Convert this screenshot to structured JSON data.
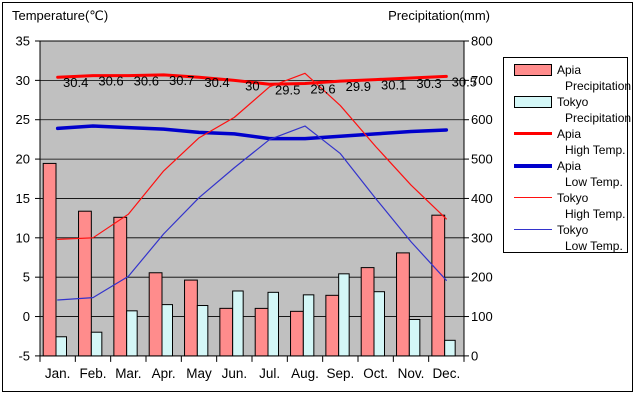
{
  "titles": {
    "left_axis": "Temperature(℃)",
    "right_axis": "Precipitation(mm)"
  },
  "chart_data": {
    "type": "combo-bar-line",
    "plot_bg": "#c0c0c0",
    "grid": true,
    "categories": [
      "Jan.",
      "Feb.",
      "Mar.",
      "Apr.",
      "May",
      "Jun.",
      "Jul.",
      "Aug.",
      "Sep.",
      "Oct.",
      "Nov.",
      "Dec."
    ],
    "temp_axis": {
      "title": "Temperature(℃)",
      "min": -5,
      "max": 35,
      "step": 5,
      "ticks": [
        "35",
        "30",
        "25",
        "20",
        "15",
        "10",
        "5",
        "0",
        "-5"
      ]
    },
    "precip_axis": {
      "title": "Precipitation(mm)",
      "min": 0,
      "max": 800,
      "step": 100,
      "ticks": [
        "800",
        "700",
        "600",
        "500",
        "400",
        "300",
        "200",
        "100",
        "0"
      ]
    },
    "series": [
      {
        "name": "Apia Precipitation",
        "type": "bar",
        "axis": "precip",
        "color": "#ff8c8c",
        "values": [
          489.0,
          367.6,
          352.1,
          211.2,
          192.6,
          120.8,
          120.7,
          113.2,
          153.9,
          224.3,
          261.7,
          357.5
        ]
      },
      {
        "name": "Tokyo Precipitation",
        "type": "bar",
        "axis": "precip",
        "color": "#d4f7f7",
        "values": [
          48.6,
          60.2,
          114.5,
          130.3,
          128.0,
          164.9,
          161.5,
          155.1,
          208.5,
          163.1,
          92.5,
          39.6
        ]
      },
      {
        "name": "Apia High Temp.",
        "type": "line",
        "axis": "temp",
        "color": "#ff0000",
        "width": 3,
        "values": [
          30.4,
          30.6,
          30.6,
          30.7,
          30.4,
          30,
          29.5,
          29.6,
          29.9,
          30.1,
          30.3,
          30.5
        ],
        "labels": [
          "30.4",
          "30.6",
          "30.6",
          "30.7",
          "30.4",
          "30",
          "29.5",
          "29.6",
          "29.9",
          "30.1",
          "30.3",
          "30.5"
        ]
      },
      {
        "name": "Apia Low Temp.",
        "type": "line",
        "axis": "temp",
        "color": "#0000cc",
        "width": 3.5,
        "values": [
          23.9,
          24.2,
          24.0,
          23.8,
          23.4,
          23.2,
          22.6,
          22.6,
          22.9,
          23.2,
          23.5,
          23.7
        ]
      },
      {
        "name": "Tokyo High Temp.",
        "type": "line",
        "axis": "temp",
        "color": "#ff1010",
        "width": 1.2,
        "values": [
          9.8,
          10.0,
          13.0,
          18.5,
          22.7,
          25.3,
          29.2,
          30.9,
          26.8,
          21.6,
          16.7,
          12.4
        ]
      },
      {
        "name": "Tokyo Low Temp.",
        "type": "line",
        "axis": "temp",
        "color": "#3333cc",
        "width": 1.2,
        "values": [
          2.1,
          2.4,
          5.1,
          10.5,
          15.1,
          18.9,
          22.5,
          24.2,
          20.7,
          15.0,
          9.5,
          4.6
        ]
      }
    ],
    "legend_position": "right"
  },
  "legend": {
    "items": [
      {
        "line1": "Apia",
        "line2": "Precipitation",
        "marker": "bar",
        "series": 0
      },
      {
        "line1": "Tokyo",
        "line2": "Precipitation",
        "marker": "bar",
        "series": 1
      },
      {
        "line1": "Apia",
        "line2": "High Temp.",
        "marker": "line",
        "series": 2
      },
      {
        "line1": "Apia",
        "line2": "Low Temp.",
        "marker": "line",
        "series": 3
      },
      {
        "line1": "Tokyo",
        "line2": "High Temp.",
        "marker": "line",
        "series": 4
      },
      {
        "line1": "Tokyo",
        "line2": "Low Temp.",
        "marker": "line",
        "series": 5
      }
    ]
  }
}
